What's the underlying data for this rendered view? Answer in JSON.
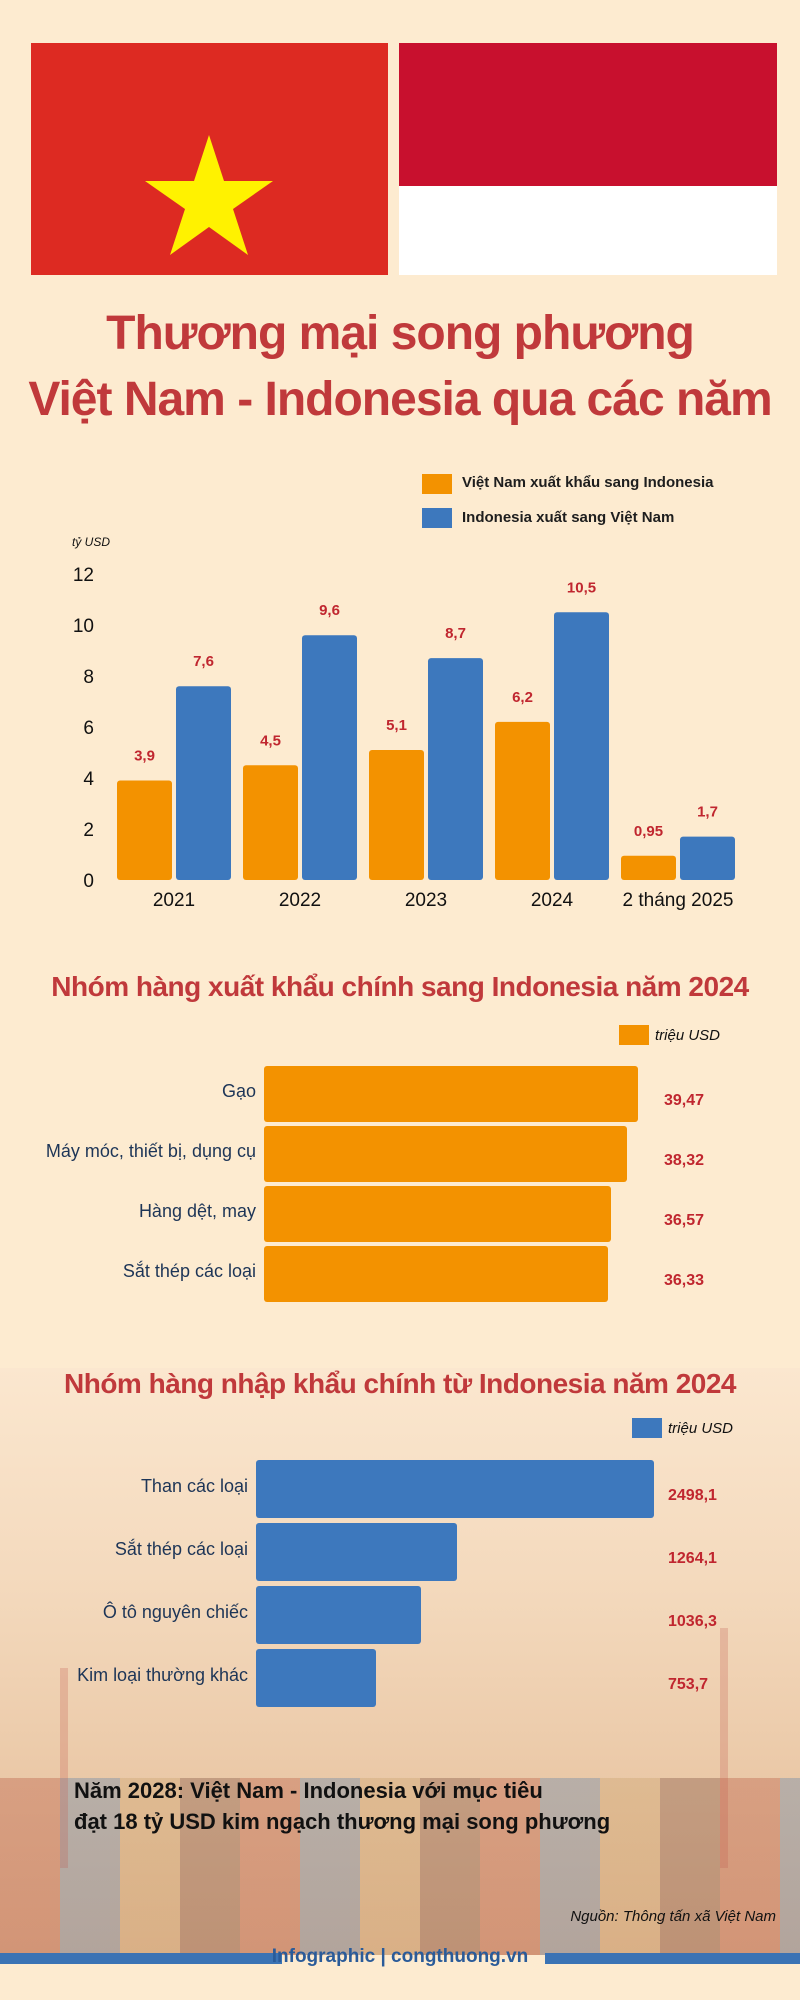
{
  "colors": {
    "background": "#fdebd0",
    "vn_red": "#dd2a22",
    "vn_star": "#fff200",
    "id_red": "#c8102e",
    "orange": "#f39200",
    "blue": "#3d78bd",
    "title_red": "#c0393b",
    "value_red": "#c0262f"
  },
  "title": {
    "line1": "Thương mại song phương",
    "line2": "Việt Nam - Indonesia qua các năm"
  },
  "chart_data": [
    {
      "type": "bar",
      "categories": [
        "2021",
        "2022",
        "2023",
        "2024",
        "2 tháng 2025"
      ],
      "series": [
        {
          "name": "Việt Nam xuất khẩu sang Indonesia",
          "values": [
            3.9,
            4.5,
            5.1,
            6.2,
            0.95
          ],
          "labels": [
            "3,9",
            "4,5",
            "5,1",
            "6,2",
            "0,95"
          ],
          "color": "#f39200"
        },
        {
          "name": "Indonesia xuất sang Việt Nam",
          "values": [
            7.6,
            9.6,
            8.7,
            10.5,
            1.7
          ],
          "labels": [
            "7,6",
            "9,6",
            "8,7",
            "10,5",
            "1,7"
          ],
          "color": "#3d78bd"
        }
      ],
      "unit": "tỷ USD",
      "ylim": [
        0,
        12
      ],
      "yticks": [
        "0",
        "2",
        "4",
        "6",
        "8",
        "10",
        "12"
      ],
      "legend": "top-right"
    },
    {
      "type": "bar",
      "orientation": "horizontal",
      "title": "Nhóm hàng xuất khẩu chính sang Indonesia năm 2024",
      "legend": "triệu USD",
      "categories": [
        "Gạo",
        "Máy móc, thiết bị, dụng cụ",
        "Hàng dệt, may",
        "Sắt thép các loại"
      ],
      "values": [
        39.47,
        38.32,
        36.57,
        36.33
      ],
      "labels": [
        "39,47",
        "38,32",
        "36,57",
        "36,33"
      ],
      "color": "#f39200"
    },
    {
      "type": "bar",
      "orientation": "horizontal",
      "title": "Nhóm hàng nhập khẩu chính từ Indonesia năm 2024",
      "legend": "triệu USD",
      "categories": [
        "Than các loại",
        "Sắt thép các loại",
        "Ô tô nguyên chiếc",
        "Kim loại thường khác"
      ],
      "values": [
        2498.1,
        1264.1,
        1036.3,
        753.7
      ],
      "labels": [
        "2498,1",
        "1264,1",
        "1036,3",
        "753,7"
      ],
      "color": "#3d78bd"
    }
  ],
  "goal": {
    "line1": "Năm 2028: Việt Nam - Indonesia với mục tiêu",
    "line2": "đạt 18 tỷ USD kim ngạch thương mại song phương"
  },
  "source": "Nguồn: Thông tấn xã Việt Nam",
  "footer": "Infographic | congthuong.vn"
}
